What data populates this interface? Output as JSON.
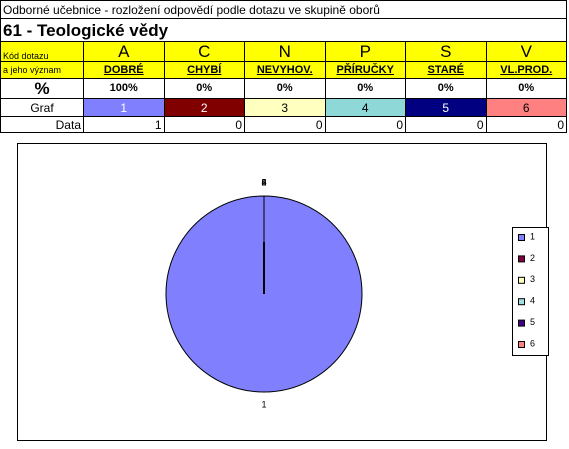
{
  "header": {
    "subtitle": "Odborné učebnice - rozložení odpovědí podle dotazu ve skupině oborů",
    "title": "61 - Teologické vědy"
  },
  "table": {
    "row_labels": {
      "code": "Kód dotazu",
      "meaning": "a jeho význam",
      "percent": "%",
      "graph": "Graf",
      "data": "Data"
    },
    "codes": [
      "A",
      "C",
      "N",
      "P",
      "S",
      "V"
    ],
    "meanings": [
      "DOBRÉ",
      "CHYBÍ",
      "NEVYHOV.",
      "PŘÍRUČKY",
      "STARÉ",
      "VL.PROD."
    ],
    "percents": [
      "100%",
      "0%",
      "0%",
      "0%",
      "0%",
      "0%"
    ],
    "graph": [
      "1",
      "2",
      "3",
      "4",
      "5",
      "6"
    ],
    "graph_colors": [
      "#8080ff",
      "#800000",
      "#ffffc0",
      "#8fd8d8",
      "#000080",
      "#ff8080"
    ],
    "data": [
      1,
      0,
      0,
      0,
      0,
      0
    ]
  },
  "chart_data": {
    "type": "pie",
    "categories": [
      "1",
      "2",
      "3",
      "4",
      "5",
      "6"
    ],
    "values": [
      1,
      0,
      0,
      0,
      0,
      0
    ],
    "colors": [
      "#8080ff",
      "#800040",
      "#ffffc0",
      "#a0e0e0",
      "#400080",
      "#ff8080"
    ],
    "legend": "right"
  }
}
